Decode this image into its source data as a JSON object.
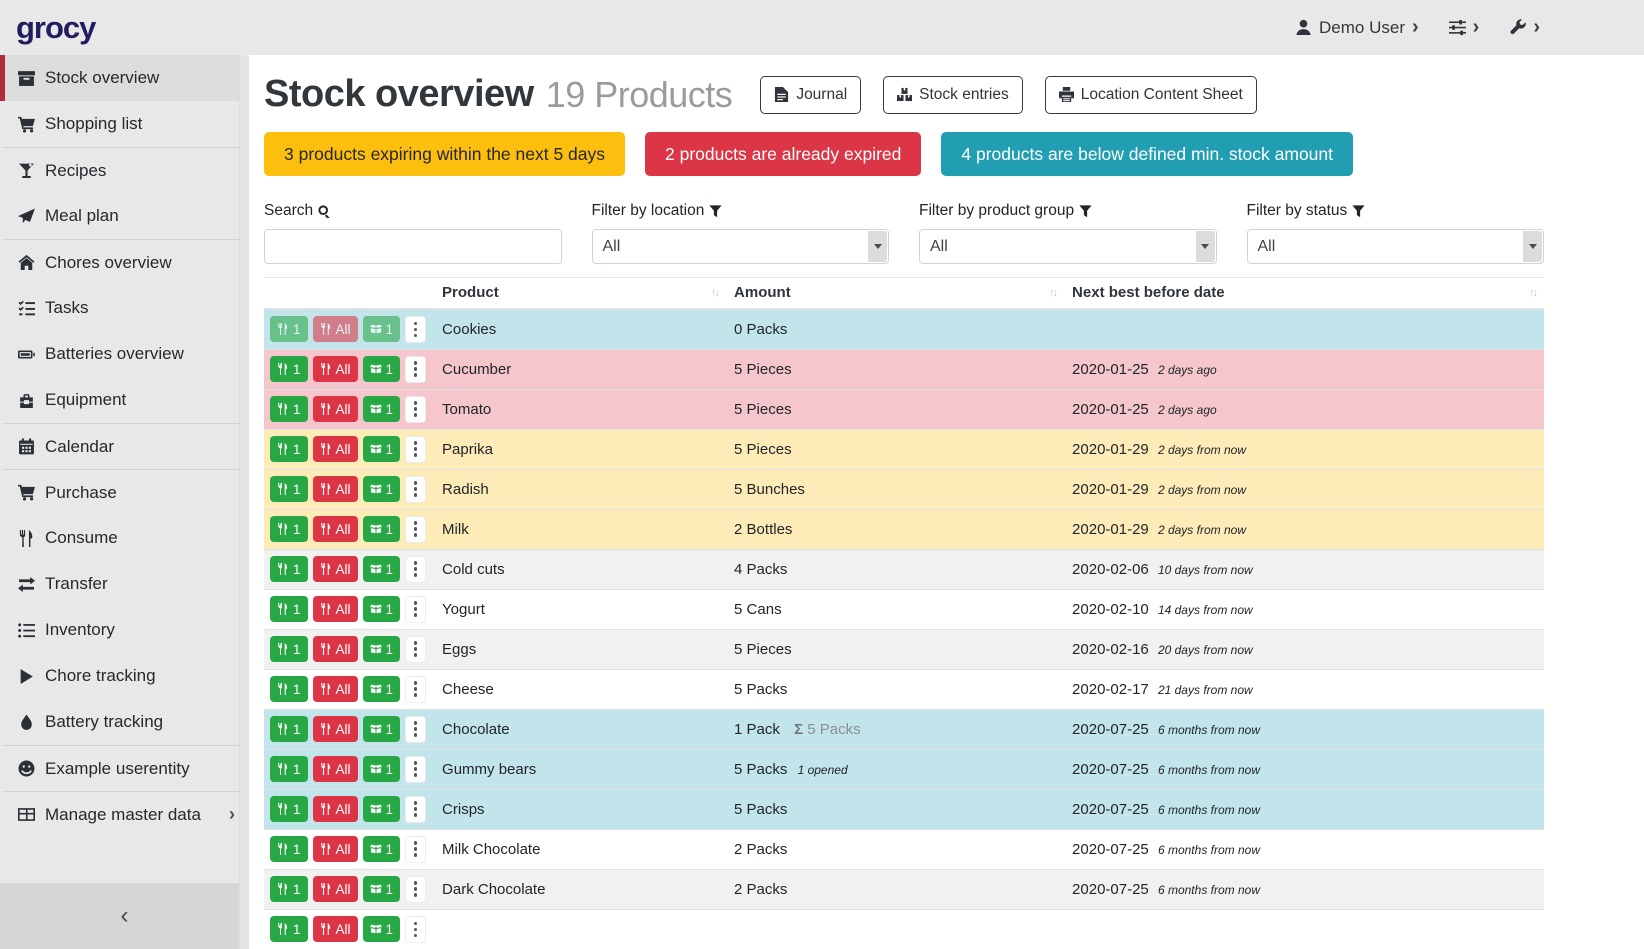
{
  "brand": {
    "name": "grocy"
  },
  "topbar": {
    "user_label": "Demo User",
    "menus": [
      {
        "name": "user-menu",
        "icon": "user-icon"
      },
      {
        "name": "settings-menu",
        "icon": "sliders-icon"
      },
      {
        "name": "admin-menu",
        "icon": "wrench-icon"
      }
    ]
  },
  "sidebar": {
    "items": [
      {
        "label": "Stock overview",
        "icon": "archive-icon",
        "active": true
      },
      {
        "label": "Shopping list",
        "icon": "cart-icon"
      },
      {
        "label": "Recipes",
        "icon": "cocktail-icon",
        "divider_before": true
      },
      {
        "label": "Meal plan",
        "icon": "paper-plane-icon"
      },
      {
        "label": "Chores overview",
        "icon": "home-icon",
        "divider_before": true
      },
      {
        "label": "Tasks",
        "icon": "tasks-icon"
      },
      {
        "label": "Batteries overview",
        "icon": "battery-icon"
      },
      {
        "label": "Equipment",
        "icon": "toolbox-icon"
      },
      {
        "label": "Calendar",
        "icon": "calendar-icon",
        "divider_before": true
      },
      {
        "label": "Purchase",
        "icon": "cart-icon",
        "divider_before": true
      },
      {
        "label": "Consume",
        "icon": "utensils-icon"
      },
      {
        "label": "Transfer",
        "icon": "exchange-icon"
      },
      {
        "label": "Inventory",
        "icon": "list-icon"
      },
      {
        "label": "Chore tracking",
        "icon": "play-icon"
      },
      {
        "label": "Battery tracking",
        "icon": "drop-icon"
      },
      {
        "label": "Example userentity",
        "icon": "smile-icon",
        "divider_before": true
      },
      {
        "label": "Manage master data",
        "icon": "table-icon",
        "divider_before": true,
        "chevron": true
      }
    ],
    "collapse_icon": "angle-left-icon"
  },
  "header": {
    "title": "Stock overview",
    "subtitle": "19 Products",
    "buttons": [
      {
        "label": "Journal",
        "icon": "file-icon"
      },
      {
        "label": "Stock entries",
        "icon": "boxes-icon"
      },
      {
        "label": "Location Content Sheet",
        "icon": "print-icon"
      }
    ]
  },
  "alerts": [
    {
      "text": "3 products expiring within the next 5 days",
      "bg": "#fcbf0e",
      "fg": "#272727"
    },
    {
      "text": "2 products are already expired",
      "bg": "#dc3545",
      "fg": "#ffffff"
    },
    {
      "text": "4 products are below defined min. stock amount",
      "bg": "#219eb2",
      "fg": "#ffffff"
    }
  ],
  "filters": {
    "search": {
      "label": "Search",
      "icon": "search-icon",
      "value": "",
      "placeholder": ""
    },
    "location": {
      "label": "Filter by location",
      "icon": "filter-icon",
      "value": "All"
    },
    "product_group": {
      "label": "Filter by product group",
      "icon": "filter-icon",
      "value": "All"
    },
    "status": {
      "label": "Filter by status",
      "icon": "filter-icon",
      "value": "All"
    }
  },
  "table": {
    "columns": [
      "Product",
      "Amount",
      "Next best before date"
    ],
    "row_buttons": {
      "consume_one": "1",
      "consume_all": "All",
      "open_one": "1"
    },
    "status_colors": {
      "info": "#c2e5ec",
      "danger": "#f5c6cb",
      "warning": "#fdecb8",
      "stripe": "#f1f1f2"
    },
    "sum_symbol": "Σ",
    "rows": [
      {
        "product": "Cookies",
        "amount": "0 Packs",
        "date": "",
        "relative": "",
        "status": "info",
        "disabled": true
      },
      {
        "product": "Cucumber",
        "amount": "5 Pieces",
        "date": "2020-01-25",
        "relative": "2 days ago",
        "status": "danger"
      },
      {
        "product": "Tomato",
        "amount": "5 Pieces",
        "date": "2020-01-25",
        "relative": "2 days ago",
        "status": "danger"
      },
      {
        "product": "Paprika",
        "amount": "5 Pieces",
        "date": "2020-01-29",
        "relative": "2 days from now",
        "status": "warning"
      },
      {
        "product": "Radish",
        "amount": "5 Bunches",
        "date": "2020-01-29",
        "relative": "2 days from now",
        "status": "warning"
      },
      {
        "product": "Milk",
        "amount": "2 Bottles",
        "date": "2020-01-29",
        "relative": "2 days from now",
        "status": "warning"
      },
      {
        "product": "Cold cuts",
        "amount": "4 Packs",
        "date": "2020-02-06",
        "relative": "10 days from now",
        "status": ""
      },
      {
        "product": "Yogurt",
        "amount": "5 Cans",
        "date": "2020-02-10",
        "relative": "14 days from now",
        "status": ""
      },
      {
        "product": "Eggs",
        "amount": "5 Pieces",
        "date": "2020-02-16",
        "relative": "20 days from now",
        "status": ""
      },
      {
        "product": "Cheese",
        "amount": "5 Packs",
        "date": "2020-02-17",
        "relative": "21 days from now",
        "status": ""
      },
      {
        "product": "Chocolate",
        "amount": "1 Pack",
        "sum": "5 Packs",
        "date": "2020-07-25",
        "relative": "6 months from now",
        "status": "info"
      },
      {
        "product": "Gummy bears",
        "amount": "5 Packs",
        "opened": "1 opened",
        "date": "2020-07-25",
        "relative": "6 months from now",
        "status": "info"
      },
      {
        "product": "Crisps",
        "amount": "5 Packs",
        "date": "2020-07-25",
        "relative": "6 months from now",
        "status": "info"
      },
      {
        "product": "Milk Chocolate",
        "amount": "2 Packs",
        "date": "2020-07-25",
        "relative": "6 months from now",
        "status": ""
      },
      {
        "product": "Dark Chocolate",
        "amount": "2 Packs",
        "date": "2020-07-25",
        "relative": "6 months from now",
        "status": ""
      },
      {
        "product": "",
        "amount": "",
        "date": "",
        "relative": "",
        "status": "",
        "partial": true
      }
    ]
  }
}
